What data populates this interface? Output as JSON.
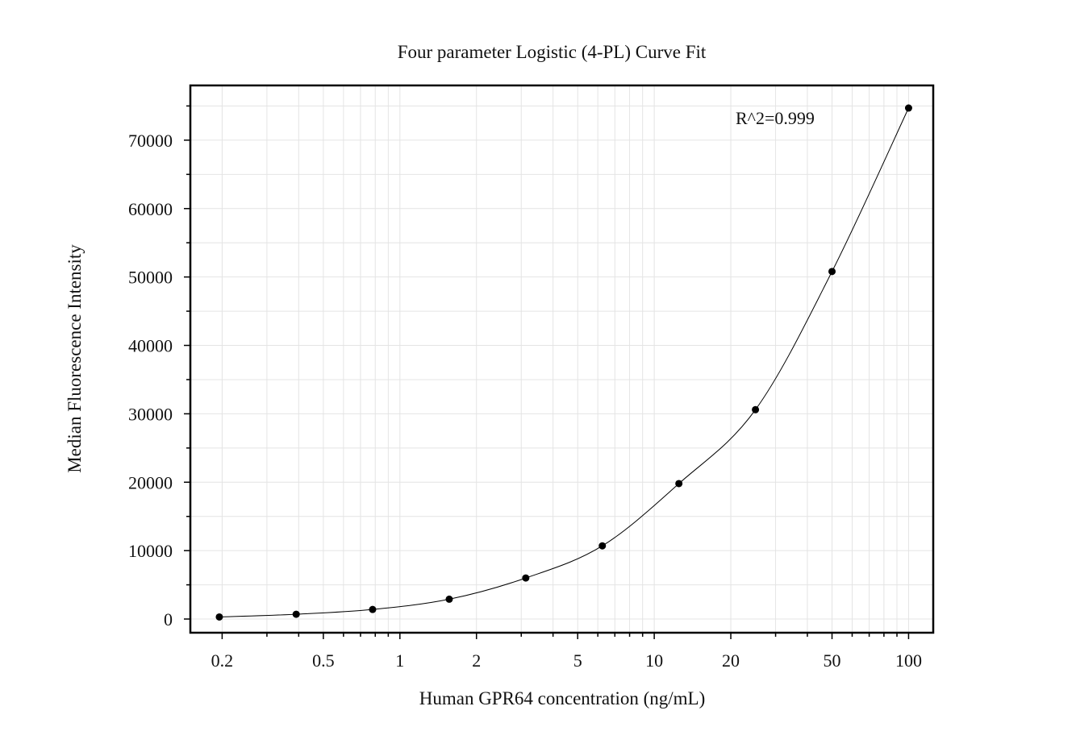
{
  "chart_data": {
    "type": "scatter",
    "title": "Four parameter Logistic (4-PL) Curve Fit",
    "xlabel": "Human GPR64 concentration (ng/mL)",
    "ylabel": "Median Fluorescence Intensity",
    "x_scale": "log",
    "xlim": [
      0.15,
      125
    ],
    "ylim": [
      -2000,
      78000
    ],
    "x_ticks": [
      0.2,
      0.5,
      1,
      2,
      5,
      10,
      20,
      50,
      100
    ],
    "x_tick_labels": [
      "0.2",
      "0.5",
      "1",
      "2",
      "5",
      "10",
      "20",
      "50",
      "100"
    ],
    "y_ticks": [
      0,
      10000,
      20000,
      30000,
      40000,
      50000,
      60000,
      70000
    ],
    "y_tick_labels": [
      "0",
      "10000",
      "20000",
      "30000",
      "40000",
      "50000",
      "60000",
      "70000"
    ],
    "grid": true,
    "annotation": "R^2=0.999",
    "series": [
      {
        "x": [
          0.195,
          0.391,
          0.781,
          1.563,
          3.125,
          6.25,
          12.5,
          25,
          50,
          100
        ],
        "y": [
          300,
          700,
          1400,
          2900,
          6000,
          10700,
          19800,
          30600,
          50800,
          74700
        ]
      }
    ],
    "fit_curve": {
      "type": "4PL",
      "x_min": 0.195,
      "x_max": 100
    },
    "colors": {
      "points": "#000000",
      "curve": "#000000",
      "grid": "#e4e4e4",
      "frame": "#000000"
    }
  }
}
